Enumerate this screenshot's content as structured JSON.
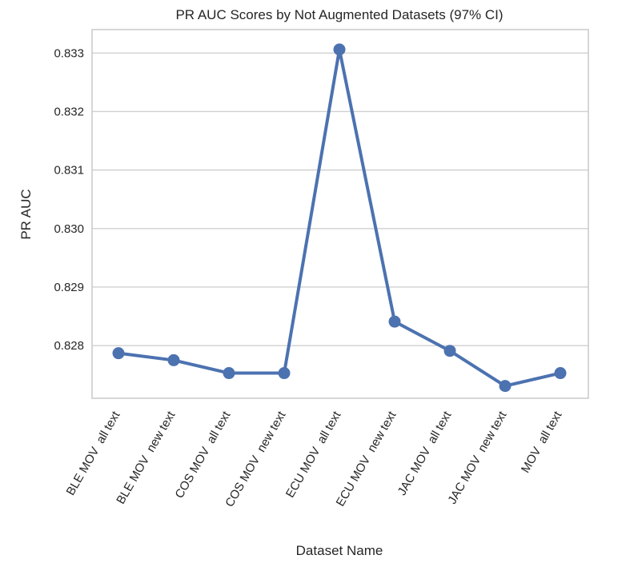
{
  "chart_data": {
    "type": "line",
    "title": "PR AUC Scores by Not Augmented Datasets (97% CI)",
    "xlabel": "Dataset Name",
    "ylabel": "PR AUC",
    "categories": [
      "BLE MOV  all text",
      "BLE MOV  new text",
      "COS MOV  all text",
      "COS MOV  new text",
      "ECU MOV  all text",
      "ECU MOV  new text",
      "JAC MOV  all text",
      "JAC MOV  new text",
      "MOV  all text"
    ],
    "series": [
      {
        "values": [
          0.82787,
          0.82775,
          0.82753,
          0.82753,
          0.83306,
          0.82841,
          0.82791,
          0.82731,
          0.82753
        ]
      }
    ],
    "ylim": [
      0.8271,
      0.8334
    ],
    "yticks": [
      0.828,
      0.829,
      0.83,
      0.831,
      0.832,
      0.833
    ],
    "grid": true,
    "color": "#4c72b0"
  }
}
